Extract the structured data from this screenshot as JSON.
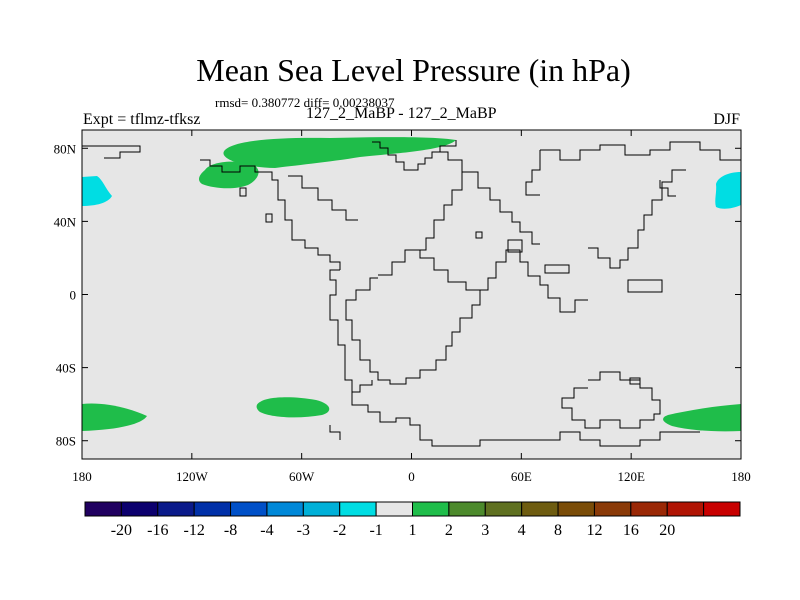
{
  "title": "Mean Sea Level Pressure (in hPa)",
  "stats": "rmsd= 0.380772 diff= 0.00238037",
  "experiment_left": "Expt = tflmz-tfksz",
  "experiment_center": "127_2_MaBP - 127_2_MaBP",
  "season": "DJF",
  "map": {
    "projection": "cylindrical-equidistant",
    "lon_range": [
      -180,
      180
    ],
    "lat_range": [
      -90,
      90
    ],
    "background_color": "#e6e6e6",
    "lat_ticks": [
      {
        "value": 80,
        "label": "80N"
      },
      {
        "value": 40,
        "label": "40N"
      },
      {
        "value": 0,
        "label": "0"
      },
      {
        "value": -40,
        "label": "40S"
      },
      {
        "value": -80,
        "label": "80S"
      }
    ],
    "lon_ticks": [
      {
        "value": -180,
        "label": "180"
      },
      {
        "value": -120,
        "label": "120W"
      },
      {
        "value": -60,
        "label": "60W"
      },
      {
        "value": 0,
        "label": "0"
      },
      {
        "value": 60,
        "label": "60E"
      },
      {
        "value": 120,
        "label": "120E"
      },
      {
        "value": 180,
        "label": "180"
      }
    ],
    "shaded_regions": [
      {
        "name": "arctic-band-positive",
        "color": "#1fbd4a",
        "description": "1 to 2 hPa"
      },
      {
        "name": "north-pacific-east-positive",
        "color": "#1fbd4a",
        "description": "1 to 2 hPa"
      },
      {
        "name": "north-pacific-west-negative",
        "color": "#00dde3",
        "description": "-2 to -1 hPa"
      },
      {
        "name": "southern-ocean-positive",
        "color": "#1fbd4a",
        "description": "1 to 2 hPa"
      }
    ]
  },
  "colorbar": {
    "colors": [
      "#200060",
      "#0c006e",
      "#0a1a8a",
      "#0030a8",
      "#0050c8",
      "#0088d8",
      "#00b0d8",
      "#00dde3",
      "#e6e6e6",
      "#1fbd4a",
      "#4c8a2c",
      "#5f7020",
      "#6e5c10",
      "#7a4c08",
      "#8a3a08",
      "#9a2806",
      "#b01404",
      "#c80000"
    ],
    "labels": [
      "-20",
      "-16",
      "-12",
      "-8",
      "-4",
      "-3",
      "-2",
      "-1",
      "1",
      "2",
      "3",
      "4",
      "8",
      "12",
      "16",
      "20"
    ]
  }
}
